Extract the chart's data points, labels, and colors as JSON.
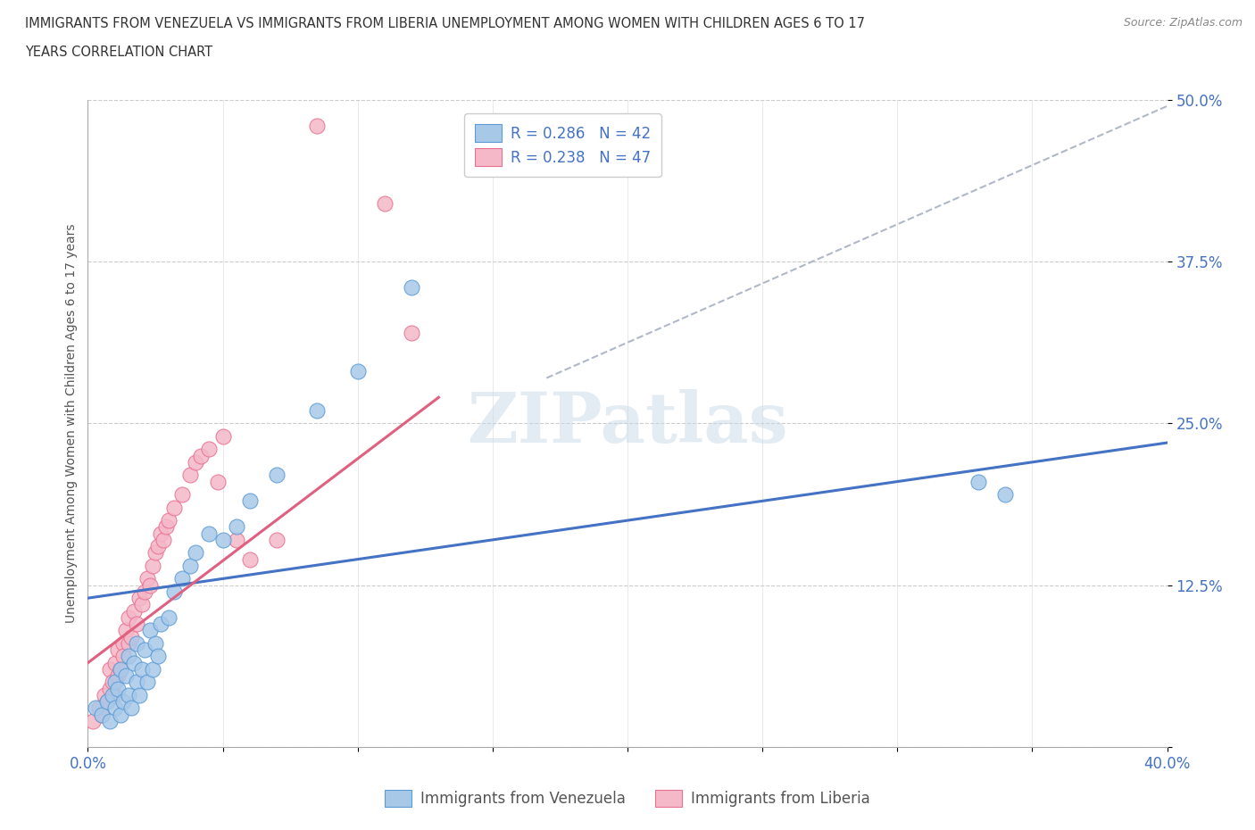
{
  "title_line1": "IMMIGRANTS FROM VENEZUELA VS IMMIGRANTS FROM LIBERIA UNEMPLOYMENT AMONG WOMEN WITH CHILDREN AGES 6 TO 17",
  "title_line2": "YEARS CORRELATION CHART",
  "source": "Source: ZipAtlas.com",
  "ylabel": "Unemployment Among Women with Children Ages 6 to 17 years",
  "xlim": [
    0.0,
    0.4
  ],
  "ylim": [
    0.0,
    0.5
  ],
  "xticks": [
    0.0,
    0.05,
    0.1,
    0.15,
    0.2,
    0.25,
    0.3,
    0.35,
    0.4
  ],
  "xticklabels": [
    "0.0%",
    "",
    "",
    "",
    "",
    "",
    "",
    "",
    "40.0%"
  ],
  "yticks": [
    0.0,
    0.125,
    0.25,
    0.375,
    0.5
  ],
  "yticklabels": [
    "",
    "12.5%",
    "25.0%",
    "37.5%",
    "50.0%"
  ],
  "venezuela_color": "#a8c8e8",
  "venezuela_edge_color": "#5b9bd5",
  "liberia_color": "#f4b8c8",
  "liberia_edge_color": "#e87090",
  "venezuela_line_color": "#4472c4",
  "liberia_line_color": "#e06080",
  "gray_dash_color": "#b0b8c8",
  "r_venezuela": 0.286,
  "n_venezuela": 42,
  "r_liberia": 0.238,
  "n_liberia": 47,
  "watermark": "ZIPatlas",
  "background_color": "#ffffff",
  "legend_color": "#4472c4",
  "venezuela_x": [
    0.003,
    0.005,
    0.007,
    0.008,
    0.009,
    0.01,
    0.01,
    0.011,
    0.012,
    0.012,
    0.013,
    0.014,
    0.015,
    0.015,
    0.016,
    0.017,
    0.018,
    0.018,
    0.019,
    0.02,
    0.021,
    0.022,
    0.023,
    0.024,
    0.025,
    0.026,
    0.027,
    0.03,
    0.032,
    0.035,
    0.038,
    0.04,
    0.045,
    0.05,
    0.055,
    0.06,
    0.07,
    0.085,
    0.1,
    0.12,
    0.33,
    0.34
  ],
  "venezuela_y": [
    0.03,
    0.025,
    0.035,
    0.02,
    0.04,
    0.03,
    0.05,
    0.045,
    0.025,
    0.06,
    0.035,
    0.055,
    0.04,
    0.07,
    0.03,
    0.065,
    0.05,
    0.08,
    0.04,
    0.06,
    0.075,
    0.05,
    0.09,
    0.06,
    0.08,
    0.07,
    0.095,
    0.1,
    0.12,
    0.13,
    0.14,
    0.15,
    0.165,
    0.16,
    0.17,
    0.19,
    0.21,
    0.26,
    0.29,
    0.355,
    0.205,
    0.195
  ],
  "liberia_x": [
    0.002,
    0.004,
    0.005,
    0.006,
    0.007,
    0.008,
    0.008,
    0.009,
    0.01,
    0.01,
    0.011,
    0.011,
    0.012,
    0.013,
    0.013,
    0.014,
    0.015,
    0.015,
    0.016,
    0.017,
    0.018,
    0.019,
    0.02,
    0.021,
    0.022,
    0.023,
    0.024,
    0.025,
    0.026,
    0.027,
    0.028,
    0.029,
    0.03,
    0.032,
    0.035,
    0.038,
    0.04,
    0.042,
    0.045,
    0.048,
    0.05,
    0.055,
    0.06,
    0.07,
    0.085,
    0.11,
    0.12
  ],
  "liberia_y": [
    0.02,
    0.03,
    0.025,
    0.04,
    0.035,
    0.045,
    0.06,
    0.05,
    0.04,
    0.065,
    0.055,
    0.075,
    0.06,
    0.08,
    0.07,
    0.09,
    0.08,
    0.1,
    0.085,
    0.105,
    0.095,
    0.115,
    0.11,
    0.12,
    0.13,
    0.125,
    0.14,
    0.15,
    0.155,
    0.165,
    0.16,
    0.17,
    0.175,
    0.185,
    0.195,
    0.21,
    0.22,
    0.225,
    0.23,
    0.205,
    0.24,
    0.16,
    0.145,
    0.16,
    0.48,
    0.42,
    0.32
  ],
  "venezuela_trend_x": [
    0.0,
    0.4
  ],
  "venezuela_trend_y": [
    0.115,
    0.235
  ],
  "liberia_trend_x": [
    0.0,
    0.13
  ],
  "liberia_trend_y": [
    0.065,
    0.27
  ],
  "gray_trend_x": [
    0.17,
    0.4
  ],
  "gray_trend_y": [
    0.285,
    0.495
  ]
}
